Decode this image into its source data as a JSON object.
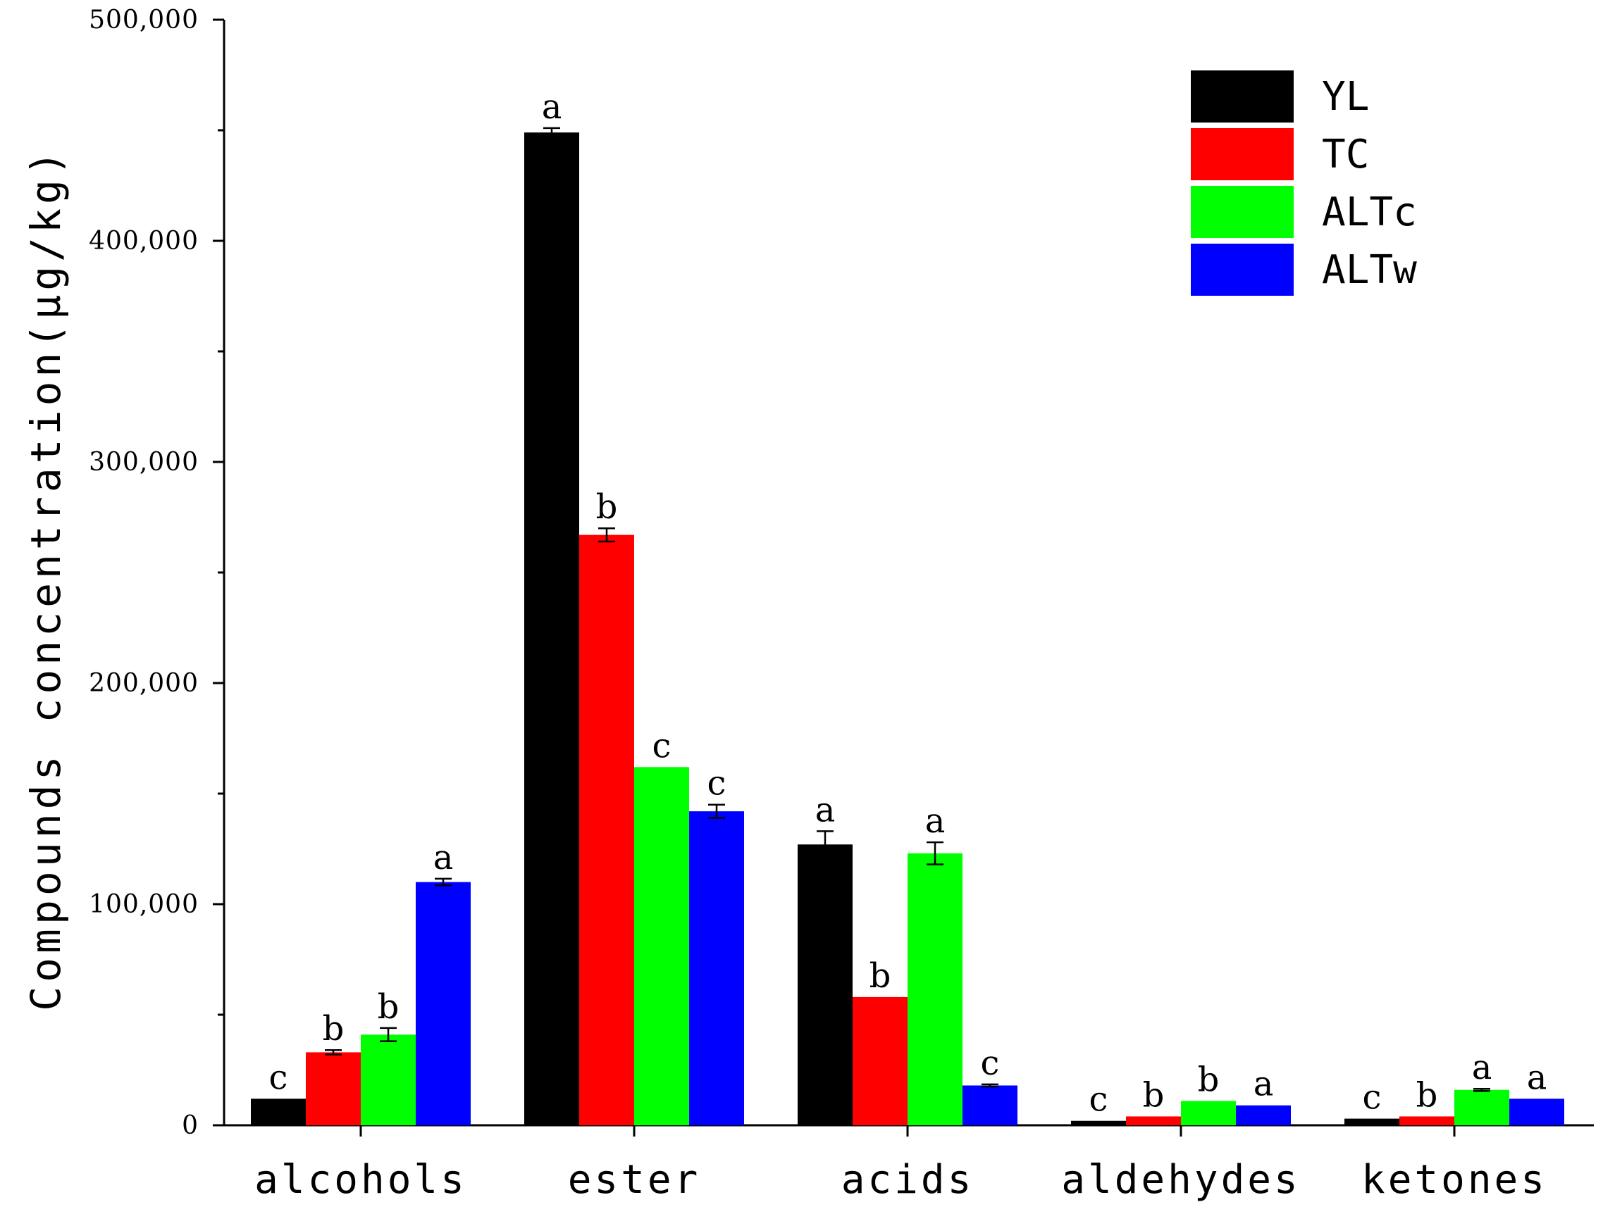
{
  "chart_data": {
    "type": "bar",
    "title": "",
    "xlabel": "",
    "ylabel": "Compounds concentration(μg/kg)",
    "ylim": [
      0,
      500000
    ],
    "yticks": [
      0,
      100000,
      200000,
      300000,
      400000,
      500000
    ],
    "ytick_labels": [
      "0",
      "100,000",
      "200,000",
      "300,000",
      "400,000",
      "500,000"
    ],
    "categories": [
      "alcohols",
      "ester",
      "acids",
      "aldehydes",
      "ketones"
    ],
    "grid": false,
    "legend_position": "top-right",
    "series": [
      {
        "name": "YL",
        "color": "#000000",
        "values": [
          12000,
          449000,
          127000,
          2000,
          3000
        ],
        "errors": [
          0,
          2000,
          6000,
          0,
          0
        ],
        "sig": [
          "c",
          "a",
          "a",
          "c",
          "c"
        ]
      },
      {
        "name": "TC",
        "color": "#ff0000",
        "values": [
          33000,
          267000,
          58000,
          4000,
          4000
        ],
        "errors": [
          1000,
          3000,
          0,
          0,
          0
        ],
        "sig": [
          "b",
          "b",
          "b",
          "b",
          "b"
        ]
      },
      {
        "name": "ALTc",
        "color": "#00ff00",
        "values": [
          41000,
          162000,
          123000,
          11000,
          16000
        ],
        "errors": [
          3000,
          0,
          5000,
          0,
          500
        ],
        "sig": [
          "b",
          "c",
          "a",
          "b",
          "a"
        ]
      },
      {
        "name": "ALTw",
        "color": "#0000ff",
        "values": [
          110000,
          142000,
          18000,
          9000,
          12000
        ],
        "errors": [
          1500,
          3000,
          500,
          0,
          0
        ],
        "sig": [
          "a",
          "c",
          "c",
          "a",
          "a"
        ]
      }
    ]
  }
}
